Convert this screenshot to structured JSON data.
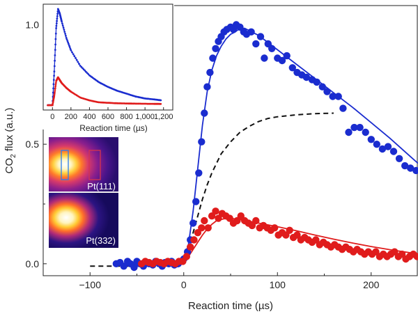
{
  "chart_data": [
    {
      "type": "scatter",
      "title": "",
      "xlabel": "Reaction time (µs)",
      "ylabel_main": "CO",
      "ylabel_sub": "2",
      "ylabel_rest": " flux (a.u.)",
      "xlim": [
        -150,
        250
      ],
      "ylim": [
        -0.05,
        1.08
      ],
      "xticks": [
        -100,
        0,
        100,
        200
      ],
      "xtick_labels": [
        "−100",
        "0",
        "100",
        "200"
      ],
      "yticks": [
        0.0,
        0.5,
        1.0
      ],
      "ytick_labels": [
        "0.0",
        "0.5",
        "1.0"
      ],
      "grid": false,
      "legend": "none",
      "series": [
        {
          "kind": "points",
          "color": "#1a2ccf",
          "x": [
            -72,
            -68,
            -64,
            -60,
            -57,
            -53,
            -50,
            -47,
            -43,
            -40,
            -37,
            -33,
            -30,
            -26,
            -23,
            -20,
            -16,
            -13,
            -10,
            -6,
            -3,
            0,
            4,
            7,
            10,
            13,
            16,
            19,
            22,
            25,
            28,
            31,
            34,
            37,
            40,
            43,
            46,
            50,
            53,
            56,
            60,
            64,
            67,
            72,
            77,
            82,
            86,
            90,
            94,
            100,
            105,
            110,
            116,
            121,
            126,
            131,
            137,
            142,
            148,
            153,
            159,
            165,
            170,
            176,
            182,
            188,
            194,
            200,
            206,
            212,
            218,
            224,
            230,
            236,
            242,
            248
          ],
          "y": [
            0.0,
            0.005,
            -0.01,
            0.01,
            0.0,
            -0.015,
            0.01,
            0.0,
            -0.01,
            0.005,
            0.0,
            -0.005,
            0.01,
            0.0,
            -0.01,
            0.005,
            0.0,
            0.01,
            -0.005,
            0.0,
            0.01,
            0.02,
            0.05,
            0.1,
            0.17,
            0.26,
            0.38,
            0.51,
            0.63,
            0.74,
            0.8,
            0.86,
            0.9,
            0.93,
            0.95,
            0.97,
            0.98,
            0.99,
            0.98,
            1.0,
            0.99,
            0.97,
            0.96,
            0.97,
            0.92,
            0.95,
            0.86,
            0.92,
            0.9,
            0.86,
            0.85,
            0.87,
            0.82,
            0.8,
            0.79,
            0.78,
            0.77,
            0.76,
            0.74,
            0.72,
            0.7,
            0.7,
            0.65,
            0.55,
            0.57,
            0.57,
            0.55,
            0.52,
            0.5,
            0.48,
            0.49,
            0.47,
            0.44,
            0.41,
            0.4,
            0.39
          ]
        },
        {
          "kind": "curve",
          "color": "#1a2ccf",
          "x": [
            -72,
            -50,
            -30,
            -15,
            -5,
            0,
            5,
            10,
            15,
            20,
            25,
            30,
            35,
            40,
            45,
            50,
            55,
            60,
            65,
            70,
            80,
            90,
            100,
            120,
            140,
            160,
            180,
            200,
            220,
            240,
            250
          ],
          "y": [
            0.0,
            0.0,
            0.0,
            0.0,
            0.005,
            0.02,
            0.08,
            0.22,
            0.4,
            0.58,
            0.72,
            0.81,
            0.87,
            0.91,
            0.94,
            0.96,
            0.97,
            0.985,
            0.985,
            0.975,
            0.955,
            0.925,
            0.895,
            0.835,
            0.775,
            0.715,
            0.655,
            0.59,
            0.525,
            0.455,
            0.42
          ]
        },
        {
          "kind": "points",
          "color": "#e01c1c",
          "x": [
            -45,
            -41,
            -37,
            -33,
            -29,
            -25,
            -21,
            -17,
            -13,
            -9,
            -5,
            -1,
            3,
            7,
            11,
            15,
            19,
            22,
            26,
            30,
            34,
            37,
            41,
            45,
            49,
            53,
            57,
            61,
            65,
            69,
            73,
            77,
            81,
            85,
            89,
            93,
            97,
            101,
            105,
            109,
            113,
            117,
            121,
            125,
            129,
            133,
            137,
            141,
            145,
            149,
            153,
            157,
            161,
            165,
            169,
            173,
            177,
            181,
            185,
            189,
            193,
            197,
            201,
            205,
            209,
            213,
            217,
            221,
            225,
            229,
            233,
            237,
            241,
            245,
            249
          ],
          "y": [
            0.0,
            0.01,
            0.005,
            0.0,
            0.01,
            0.005,
            0.0,
            0.01,
            0.005,
            0.0,
            0.01,
            0.01,
            0.03,
            0.07,
            0.1,
            0.13,
            0.15,
            0.18,
            0.15,
            0.2,
            0.22,
            0.19,
            0.21,
            0.2,
            0.19,
            0.17,
            0.18,
            0.2,
            0.18,
            0.17,
            0.16,
            0.18,
            0.15,
            0.16,
            0.15,
            0.14,
            0.15,
            0.12,
            0.13,
            0.12,
            0.14,
            0.11,
            0.12,
            0.1,
            0.11,
            0.1,
            0.09,
            0.1,
            0.08,
            0.09,
            0.08,
            0.07,
            0.08,
            0.07,
            0.06,
            0.07,
            0.06,
            0.05,
            0.06,
            0.05,
            0.04,
            0.05,
            0.04,
            0.05,
            0.03,
            0.04,
            0.03,
            0.04,
            0.05,
            0.03,
            0.04,
            0.02,
            0.03,
            0.04,
            0.03
          ]
        },
        {
          "kind": "curve",
          "color": "#e01c1c",
          "x": [
            -45,
            -20,
            0,
            5,
            10,
            15,
            20,
            25,
            30,
            35,
            40,
            45,
            50,
            60,
            70,
            80,
            100,
            120,
            140,
            160,
            180,
            200,
            220,
            240,
            250
          ],
          "y": [
            0.0,
            0.0,
            0.01,
            0.03,
            0.06,
            0.09,
            0.12,
            0.145,
            0.165,
            0.18,
            0.185,
            0.19,
            0.19,
            0.185,
            0.178,
            0.17,
            0.155,
            0.138,
            0.12,
            0.103,
            0.087,
            0.072,
            0.059,
            0.047,
            0.042
          ]
        },
        {
          "kind": "dashed",
          "color": "#111111",
          "x": [
            -100,
            -80,
            -60,
            -40,
            -20,
            0,
            5,
            10,
            15,
            20,
            25,
            30,
            35,
            40,
            50,
            60,
            70,
            80,
            90,
            100,
            120,
            140,
            160
          ],
          "y": [
            -0.01,
            -0.01,
            -0.01,
            -0.01,
            -0.01,
            0.0,
            0.06,
            0.13,
            0.2,
            0.27,
            0.33,
            0.38,
            0.42,
            0.46,
            0.51,
            0.55,
            0.575,
            0.595,
            0.608,
            0.615,
            0.623,
            0.628,
            0.63
          ]
        }
      ]
    },
    {
      "type": "line",
      "title": "",
      "xlabel": "Reaction time (µs)",
      "xlim": [
        -100,
        1300
      ],
      "ylim": [
        0,
        1.1
      ],
      "xticks": [
        0,
        200,
        400,
        600,
        800,
        1000,
        1200
      ],
      "xtick_labels": [
        "0",
        "200",
        "400",
        "600",
        "800",
        "1,000",
        "1,200"
      ],
      "grid": false,
      "legend": "none",
      "series": [
        {
          "color": "#1a2ccf",
          "x": [
            -50,
            0,
            20,
            40,
            60,
            80,
            100,
            150,
            200,
            300,
            400,
            500,
            600,
            700,
            800,
            900,
            1000,
            1100,
            1180
          ],
          "y": [
            0.05,
            0.05,
            0.4,
            0.85,
            1.05,
            1.0,
            0.92,
            0.75,
            0.62,
            0.46,
            0.36,
            0.29,
            0.24,
            0.2,
            0.17,
            0.14,
            0.12,
            0.11,
            0.1
          ]
        },
        {
          "color": "#e01c1c",
          "x": [
            -50,
            0,
            20,
            40,
            60,
            80,
            100,
            150,
            200,
            300,
            400,
            500,
            600,
            700,
            800,
            900,
            1000,
            1100,
            1180
          ],
          "y": [
            0.05,
            0.05,
            0.15,
            0.3,
            0.34,
            0.31,
            0.28,
            0.23,
            0.19,
            0.13,
            0.1,
            0.08,
            0.075,
            0.07,
            0.068,
            0.066,
            0.065,
            0.064,
            0.063
          ]
        }
      ]
    }
  ],
  "images": {
    "panel_top_label": "Pt(111)",
    "panel_bottom_label": "Pt(332)"
  }
}
